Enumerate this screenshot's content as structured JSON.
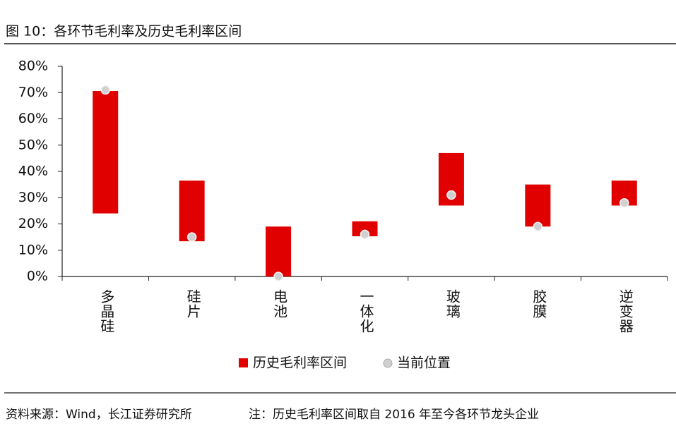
{
  "chart_data": {
    "type": "range-bar",
    "title": "图 10：各环节毛利率及历史毛利率区间",
    "categories": [
      "多晶硅",
      "硅片",
      "电池",
      "一体化",
      "玻璃",
      "胶膜",
      "逆变器"
    ],
    "range": {
      "name": "历史毛利率区间",
      "color": "#e00000",
      "low": [
        24,
        13.4,
        0,
        15.3,
        27,
        19,
        27
      ],
      "high": [
        70.6,
        36.5,
        19,
        21,
        47,
        35,
        36.5
      ]
    },
    "points": {
      "name": "当前位置",
      "color": "#d0d0d0",
      "values": [
        71,
        15,
        0,
        16,
        31,
        19,
        28
      ]
    },
    "ylim": [
      0,
      80
    ],
    "yticks": [
      {
        "value": 0,
        "label": "0%"
      },
      {
        "value": 10,
        "label": "10%"
      },
      {
        "value": 20,
        "label": "20%"
      },
      {
        "value": 30,
        "label": "30%"
      },
      {
        "value": 40,
        "label": "40%"
      },
      {
        "value": 50,
        "label": "50%"
      },
      {
        "value": 60,
        "label": "60%"
      },
      {
        "value": 70,
        "label": "70%"
      },
      {
        "value": 80,
        "label": "80%"
      }
    ],
    "grid": false,
    "source": "资料来源：Wind，长江证券研究所",
    "note": "注：历史毛利率区间取自 2016 年至今各环节龙头企业"
  }
}
